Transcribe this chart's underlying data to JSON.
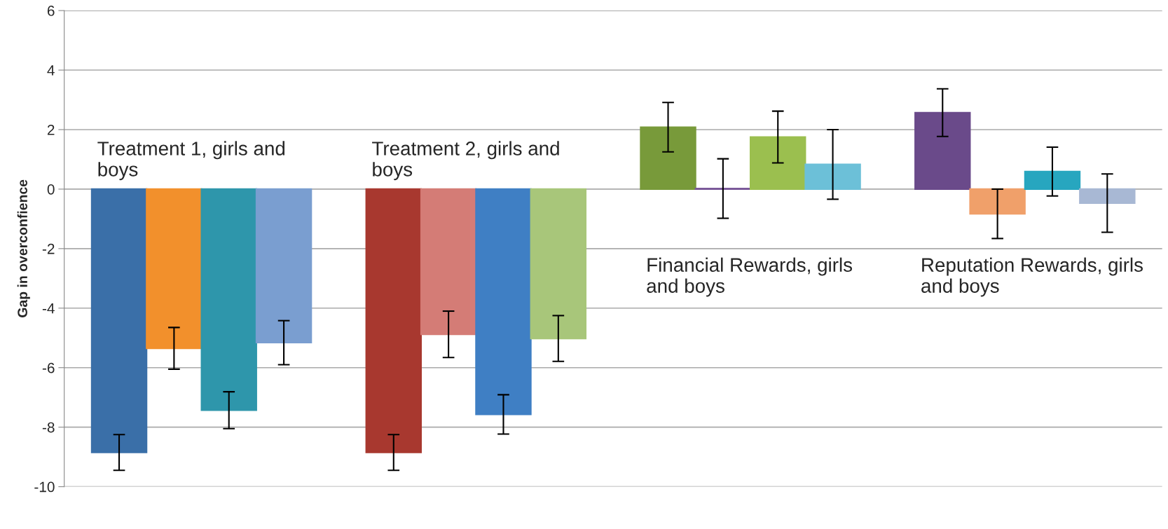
{
  "chart_data": {
    "type": "bar",
    "ylabel": "Gap in overconfience",
    "categories": [
      "Treatment 1, girls and boys",
      "Treatment 2, girls and boys",
      "Financial Rewards, girls and boys",
      "Reputation Rewards, girls and boys"
    ],
    "series": [
      {
        "colors": [
          "#3a6fa8",
          "#a8382f",
          "#789a3a",
          "#6a4a8a"
        ],
        "values": [
          -8.85,
          -8.85,
          2.08,
          2.57
        ],
        "errors": [
          0.6,
          0.6,
          0.83,
          0.8
        ]
      },
      {
        "colors": [
          "#f2902c",
          "#d47c76",
          "#7b5a9a",
          "#f0a06a"
        ],
        "values": [
          -5.35,
          -4.88,
          0.02,
          -0.83
        ],
        "errors": [
          0.7,
          0.78,
          1.0,
          0.83
        ]
      },
      {
        "colors": [
          "#2e96ab",
          "#3f7fc4",
          "#9bbf4f",
          "#27a6bf"
        ],
        "values": [
          -7.43,
          -7.57,
          1.75,
          0.59
        ],
        "errors": [
          0.62,
          0.66,
          0.87,
          0.82
        ]
      },
      {
        "colors": [
          "#7a9ed0",
          "#a8c67a",
          "#6cc0d8",
          "#a8b8d4"
        ],
        "values": [
          -5.16,
          -5.02,
          0.83,
          -0.47
        ],
        "errors": [
          0.74,
          0.77,
          1.17,
          0.98
        ]
      }
    ],
    "ylim": [
      -10,
      6
    ],
    "yticks": [
      -10,
      -8,
      -6,
      -4,
      -2,
      0,
      2,
      4,
      6
    ],
    "grid": "y",
    "tick_labels": "y"
  }
}
